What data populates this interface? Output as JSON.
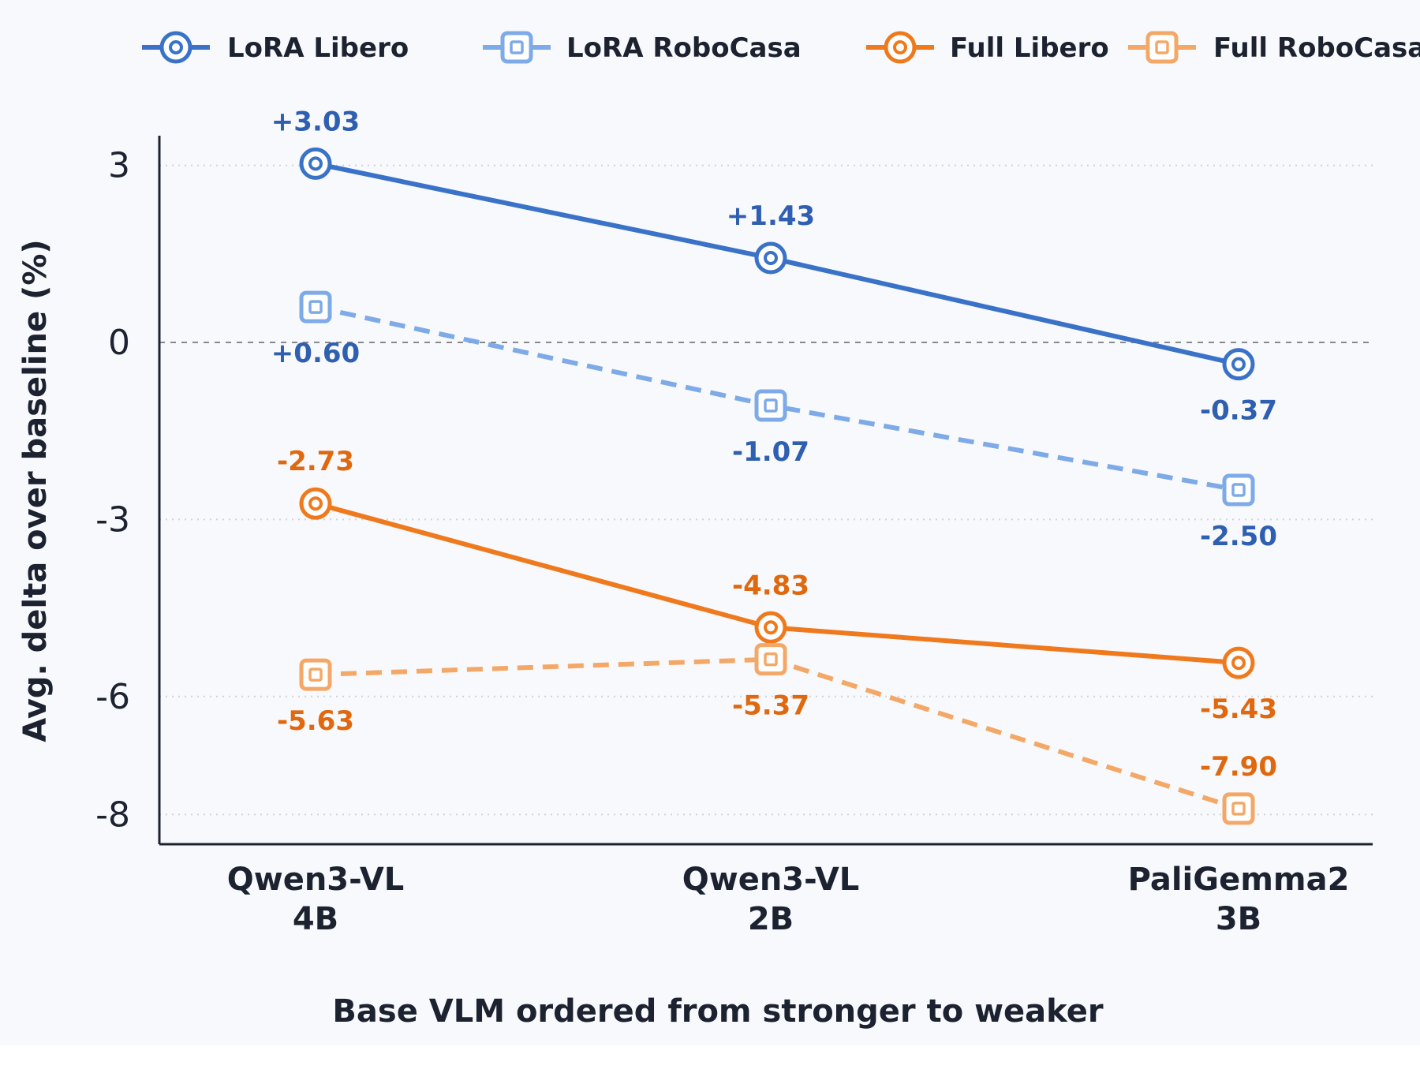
{
  "chart_data": {
    "type": "line",
    "title": "",
    "xlabel": "Base VLM ordered from stronger to weaker",
    "ylabel": "Avg. delta over baseline (%)",
    "categories": [
      [
        "Qwen3-VL",
        "4B"
      ],
      [
        "Qwen3-VL",
        "2B"
      ],
      [
        "PaliGemma2",
        "3B"
      ]
    ],
    "yticks": [
      "3",
      "0",
      "-3",
      "-6",
      "-8"
    ],
    "ytick_values": [
      3,
      0,
      -3,
      -6,
      -8
    ],
    "ylim": [
      -8.5,
      3.5
    ],
    "grid": "horizontal dotted",
    "baseline": 0,
    "legend_position": "top",
    "series": [
      {
        "name": "LoRA Libero",
        "values": [
          3.03,
          1.43,
          -0.37
        ],
        "labels": [
          "+3.03",
          "+1.43",
          "-0.37"
        ],
        "label_pos": [
          "above",
          "above",
          "below"
        ],
        "color": "#3a72c8",
        "label_color": "#2f5fb0",
        "dashed": false,
        "marker": "circle"
      },
      {
        "name": "LoRA RoboCasa",
        "values": [
          0.6,
          -1.07,
          -2.5
        ],
        "labels": [
          "+0.60",
          "-1.07",
          "-2.50"
        ],
        "label_pos": [
          "below",
          "below",
          "below"
        ],
        "color": "#7eaae8",
        "label_color": "#2f5fb0",
        "dashed": true,
        "marker": "square"
      },
      {
        "name": "Full Libero",
        "values": [
          -2.73,
          -4.83,
          -5.43
        ],
        "labels": [
          "-2.73",
          "-4.83",
          "-5.43"
        ],
        "label_pos": [
          "above",
          "above",
          "below"
        ],
        "color": "#ef7a1e",
        "label_color": "#e0680e",
        "dashed": false,
        "marker": "circle"
      },
      {
        "name": "Full RoboCasa",
        "values": [
          -5.63,
          -5.37,
          -7.9
        ],
        "labels": [
          "-5.63",
          "-5.37",
          "-7.90"
        ],
        "label_pos": [
          "below",
          "below",
          "above"
        ],
        "color": "#f4a868",
        "label_color": "#e0680e",
        "dashed": true,
        "marker": "square"
      }
    ]
  }
}
